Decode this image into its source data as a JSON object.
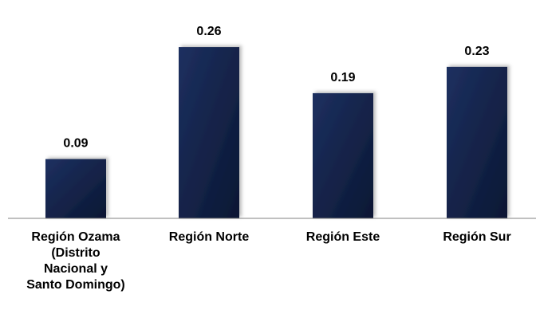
{
  "chart_data": {
    "type": "bar",
    "categories": [
      "Región Ozama\n(Distrito\nNacional y\nSanto Domingo)",
      "Región Norte",
      "Región Este",
      "Región Sur"
    ],
    "values": [
      0.09,
      0.26,
      0.19,
      0.23
    ],
    "data_labels": [
      "0.09",
      "0.26",
      "0.19",
      "0.23"
    ],
    "title": "",
    "xlabel": "",
    "ylabel": "",
    "ylim": [
      0,
      0.3
    ],
    "grid": false,
    "legend": "none",
    "colors": {
      "bar_top": "#1a2a55",
      "bar_bottom": "#0d1a3a",
      "axis": "#808080"
    }
  }
}
